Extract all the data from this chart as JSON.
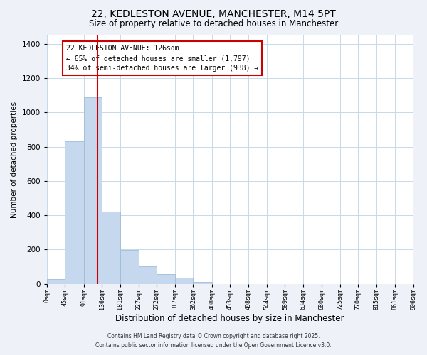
{
  "title": "22, KEDLESTON AVENUE, MANCHESTER, M14 5PT",
  "subtitle": "Size of property relative to detached houses in Manchester",
  "xlabel": "Distribution of detached houses by size in Manchester",
  "ylabel": "Number of detached properties",
  "bar_values": [
    25,
    830,
    1090,
    420,
    195,
    100,
    58,
    35,
    10,
    0,
    0,
    0,
    0,
    0,
    0,
    0,
    0,
    0,
    0,
    0
  ],
  "bin_edges": [
    0,
    45,
    91,
    136,
    181,
    227,
    272,
    317,
    362,
    408,
    453,
    498,
    544,
    589,
    634,
    680,
    725,
    770,
    815,
    861,
    906
  ],
  "tick_labels": [
    "0sqm",
    "45sqm",
    "91sqm",
    "136sqm",
    "181sqm",
    "227sqm",
    "272sqm",
    "317sqm",
    "362sqm",
    "408sqm",
    "453sqm",
    "498sqm",
    "544sqm",
    "589sqm",
    "634sqm",
    "680sqm",
    "725sqm",
    "770sqm",
    "815sqm",
    "861sqm",
    "906sqm"
  ],
  "bar_color": "#c5d8ed",
  "bar_edge_color": "#a0bcd8",
  "vline_x": 126,
  "vline_color": "#cc0000",
  "ylim": [
    0,
    1450
  ],
  "yticks": [
    0,
    200,
    400,
    600,
    800,
    1000,
    1200,
    1400
  ],
  "annotation_title": "22 KEDLESTON AVENUE: 126sqm",
  "annotation_line1": "← 65% of detached houses are smaller (1,797)",
  "annotation_line2": "34% of semi-detached houses are larger (938) →",
  "annotation_box_color": "#ffffff",
  "annotation_box_edge": "#cc0000",
  "footnote1": "Contains HM Land Registry data © Crown copyright and database right 2025.",
  "footnote2": "Contains public sector information licensed under the Open Government Licence v3.0.",
  "bg_color": "#eef2f8",
  "plot_bg_color": "#ffffff",
  "grid_color": "#c8d8e8",
  "title_fontsize": 10,
  "subtitle_fontsize": 8.5,
  "xlabel_fontsize": 8.5,
  "ylabel_fontsize": 7.5,
  "ytick_fontsize": 7.5,
  "xtick_fontsize": 6,
  "footnote_fontsize": 5.5,
  "annot_fontsize": 7
}
